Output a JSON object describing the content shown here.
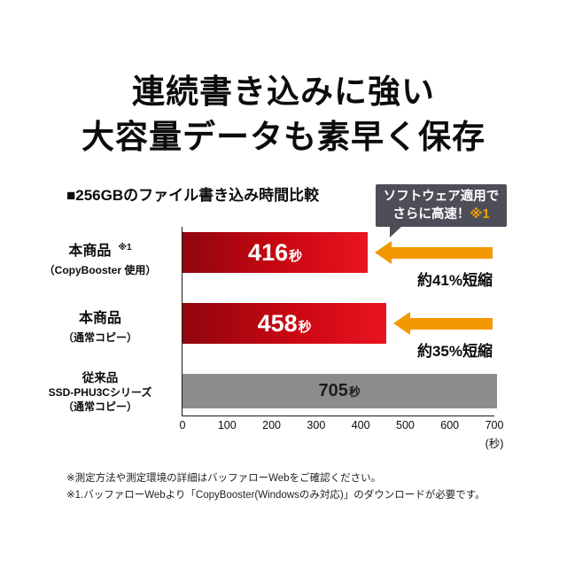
{
  "title": {
    "line1": "連続書き込みに強い",
    "line2": "大容量データも素早く保存"
  },
  "chart": {
    "heading": "■256GBのファイル書き込み時間比較",
    "callout": {
      "line1": "ソフトウェア適用で",
      "line2": "さらに高速！",
      "ref": "※1"
    },
    "rows": [
      {
        "label": "本商品",
        "label_ref": "※1",
        "sublabel": "（CopyBooster 使用）",
        "value_text": "416",
        "unit": "秒",
        "reduction": "約41%短縮"
      },
      {
        "label": "本商品",
        "sublabel": "（通常コピー）",
        "value_text": "458",
        "unit": "秒",
        "reduction": "約35%短縮"
      },
      {
        "label": "従来品",
        "sublabel": "SSD-PHU3Cシリーズ",
        "sublabel2": "（通常コピー）",
        "value_text": "705",
        "unit": "秒"
      }
    ],
    "axis": {
      "unit": "(秒)"
    }
  },
  "chart_data": {
    "type": "bar",
    "orientation": "horizontal",
    "title": "256GBのファイル書き込み時間比較",
    "categories": [
      "本商品（CopyBooster 使用）※1",
      "本商品（通常コピー）",
      "従来品 SSD-PHU3Cシリーズ（通常コピー）"
    ],
    "values": [
      416,
      458,
      705
    ],
    "unit": "秒",
    "xlim": [
      0,
      700
    ],
    "x_ticks": [
      0,
      100,
      200,
      300,
      400,
      500,
      600,
      700
    ],
    "annotations": [
      "約41%短縮",
      "約35%短縮",
      null
    ],
    "legend": "none",
    "grid": false
  },
  "colors": {
    "bar_red_start": "#90060d",
    "bar_red_end": "#e81420",
    "bar_gray": "#8c8c8c",
    "arrow_orange": "#f39800",
    "callout_bg": "#4e4e58",
    "callout_ref": "#f5a200"
  },
  "footnotes": [
    "※測定方法や測定環境の詳細はバッファローWebをご確認ください。",
    "※1.バッファローWebより「CopyBooster(Windowsのみ対応)」のダウンロードが必要です。"
  ]
}
